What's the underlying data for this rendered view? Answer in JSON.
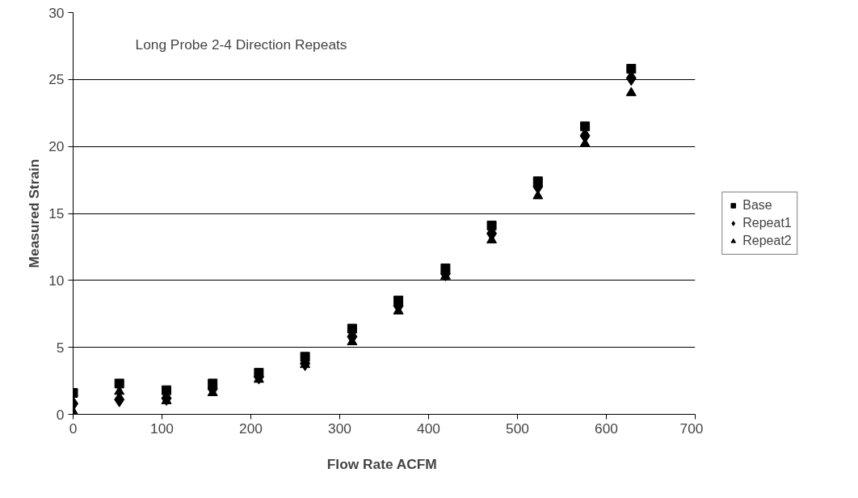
{
  "chart_data": {
    "type": "scatter",
    "title": "Long Probe 2-4 Direction Repeats",
    "xlabel": "Flow Rate  ACFM",
    "ylabel": "Measured Strain",
    "x": [
      0,
      52,
      105,
      157,
      209,
      261,
      314,
      366,
      419,
      471,
      523,
      576,
      628
    ],
    "series": [
      {
        "name": "Base",
        "color": "#000000",
        "marker": "square",
        "values": [
          1.6,
          2.3,
          1.8,
          2.3,
          3.1,
          4.3,
          6.4,
          8.5,
          10.9,
          14.1,
          17.4,
          21.5,
          25.8
        ]
      },
      {
        "name": "Repeat1",
        "color": "#000000",
        "marker": "diamond",
        "values": [
          0.8,
          1.1,
          1.2,
          1.9,
          2.8,
          3.8,
          5.8,
          8.1,
          10.5,
          13.5,
          17.0,
          20.8,
          25.1
        ]
      },
      {
        "name": "Repeat2",
        "color": "#000000",
        "marker": "triangle",
        "values": [
          0.2,
          1.7,
          1.0,
          1.6,
          2.6,
          3.7,
          5.4,
          7.7,
          10.3,
          13.0,
          16.3,
          20.2,
          24.0
        ]
      }
    ],
    "xlim": [
      0,
      700
    ],
    "xticks": [
      0,
      100,
      200,
      300,
      400,
      500,
      600,
      700
    ],
    "ylim": [
      0,
      30
    ],
    "yticks": [
      0,
      5,
      10,
      15,
      20,
      25,
      30
    ],
    "grid": "y",
    "legend": "right"
  }
}
